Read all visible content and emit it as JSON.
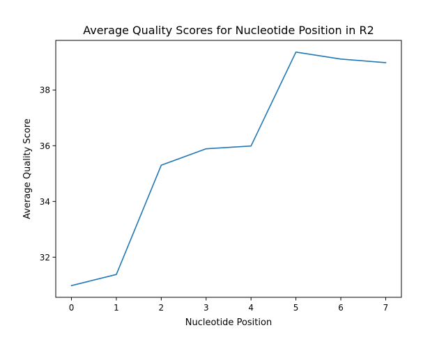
{
  "chart_data": {
    "type": "line",
    "title": "Average Quality Scores for Nucleotide Position in R2",
    "xlabel": "Nucleotide Position",
    "ylabel": "Average Quality Score",
    "x": [
      0,
      1,
      2,
      3,
      4,
      5,
      6,
      7
    ],
    "series": [
      {
        "values": [
          30.98,
          31.38,
          35.3,
          35.89,
          35.99,
          39.36,
          39.11,
          38.98
        ],
        "color": "#1f77b4"
      }
    ],
    "x_ticks": [
      "0",
      "1",
      "2",
      "3",
      "4",
      "5",
      "6",
      "7"
    ],
    "y_ticks": [
      "32",
      "34",
      "36",
      "38"
    ],
    "xlim": [
      -0.35,
      7.35
    ],
    "ylim": [
      30.56,
      39.78
    ],
    "grid": false,
    "legend": "none"
  }
}
